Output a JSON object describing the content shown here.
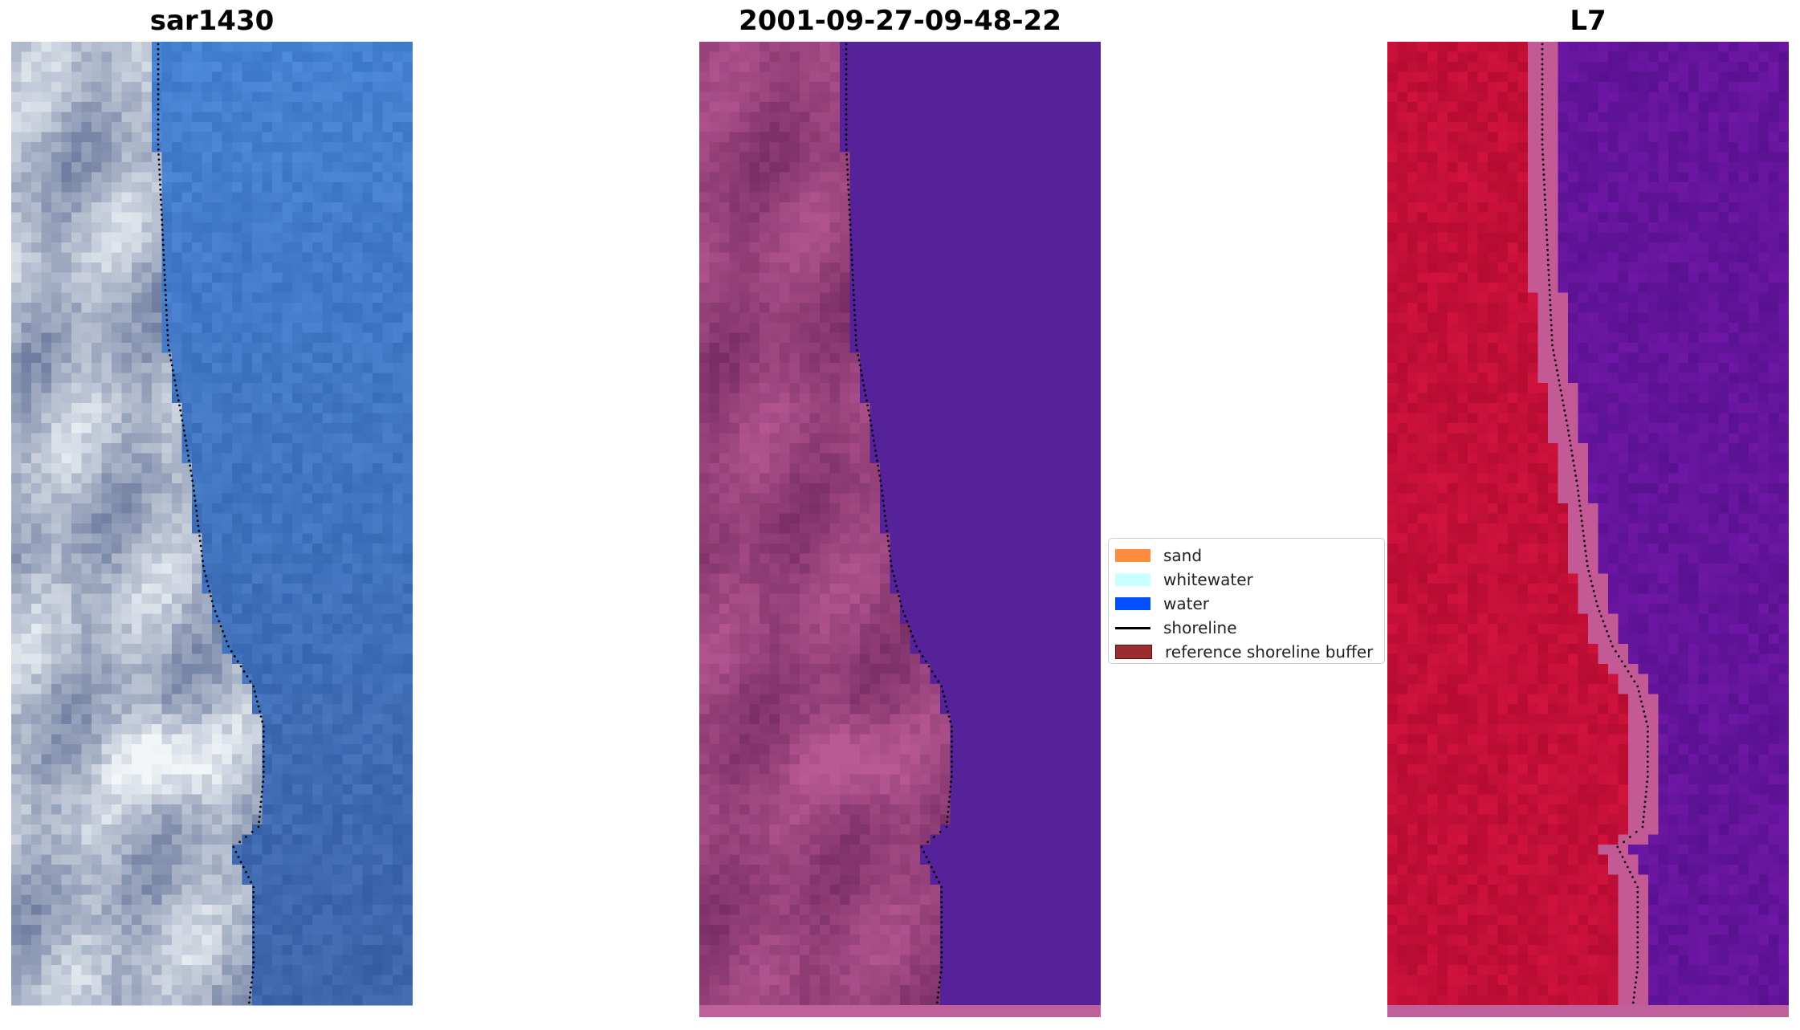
{
  "panels": [
    {
      "title": "sar1430",
      "kind": "rgb-image"
    },
    {
      "title": "2001-09-27-09-48-22",
      "kind": "classified-image"
    },
    {
      "title": "L7",
      "kind": "mndwi-image"
    }
  ],
  "legend": {
    "items": [
      {
        "label": "sand",
        "color": "#ff8c3c",
        "type": "patch"
      },
      {
        "label": "whitewater",
        "color": "#c8ffff",
        "type": "patch"
      },
      {
        "label": "water",
        "color": "#0050ff",
        "type": "patch"
      },
      {
        "label": "shoreline",
        "color": "#000000",
        "type": "line"
      },
      {
        "label": "reference shoreline buffer",
        "color": "#9b2d30",
        "type": "patch"
      }
    ]
  },
  "colors": {
    "water_rgb": "#3f6fb8",
    "water_classified": "#55229a",
    "land_classified": "#9a4a8a",
    "land_mndwi": "#c8103a",
    "water_mndwi": "#6a12a0",
    "buffer_strip": "#c0609a"
  }
}
